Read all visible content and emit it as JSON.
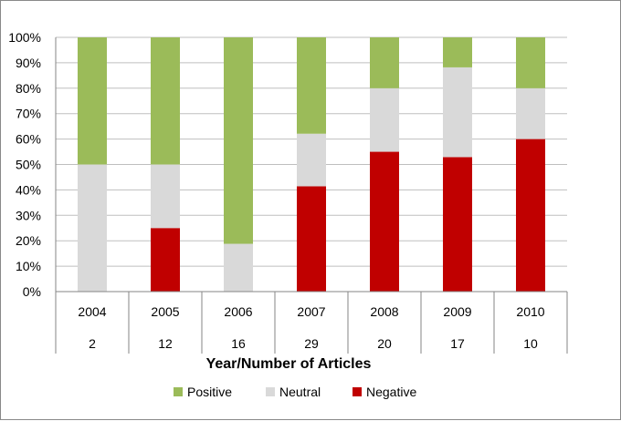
{
  "chart_data": {
    "type": "bar",
    "stacked": true,
    "percent": true,
    "categories": [
      "2004",
      "2005",
      "2006",
      "2007",
      "2008",
      "2009",
      "2010"
    ],
    "article_counts": [
      "2",
      "12",
      "16",
      "29",
      "20",
      "17",
      "10"
    ],
    "series": [
      {
        "name": "Negative",
        "color": "#c00000",
        "values": [
          0,
          25,
          0,
          41.4,
          55,
          52.9,
          60
        ]
      },
      {
        "name": "Neutral",
        "color": "#d9d9d9",
        "values": [
          50,
          25,
          18.8,
          20.7,
          25,
          35.3,
          20
        ]
      },
      {
        "name": "Positive",
        "color": "#9bbb59",
        "values": [
          50,
          50,
          81.2,
          37.9,
          20,
          11.8,
          20
        ]
      }
    ],
    "legend_order": [
      "Positive",
      "Neutral",
      "Negative"
    ],
    "legend_position": "bottom",
    "xlabel": "Year/Number of Articles",
    "ylabel": "",
    "ylim": [
      0,
      100
    ],
    "yticks": [
      "0%",
      "10%",
      "20%",
      "30%",
      "40%",
      "50%",
      "60%",
      "70%",
      "80%",
      "90%",
      "100%"
    ],
    "grid": true
  }
}
